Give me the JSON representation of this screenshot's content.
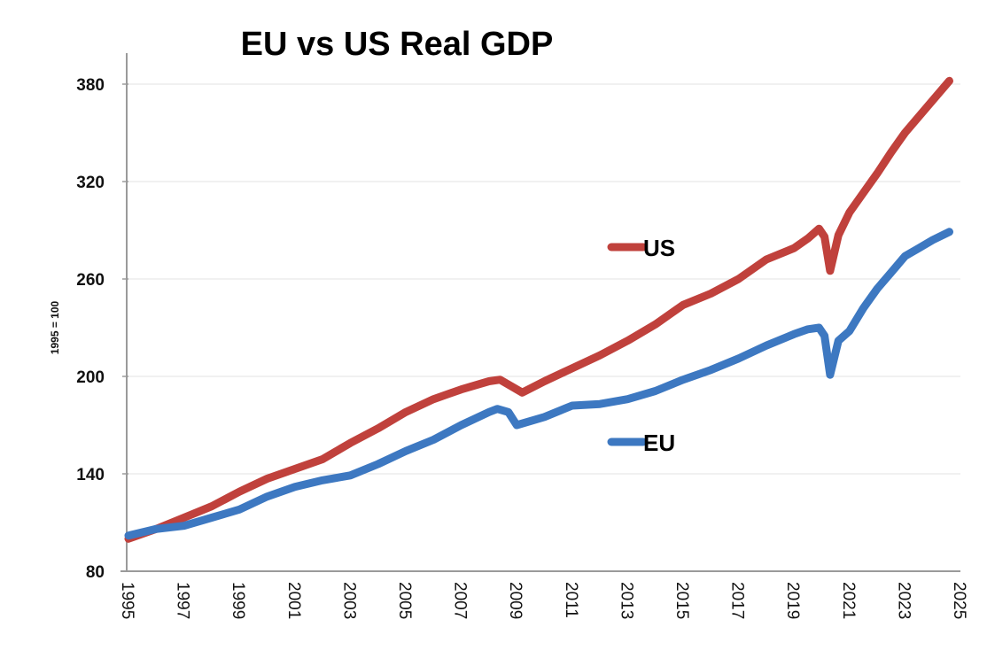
{
  "chart_data": {
    "type": "line",
    "title": "EU vs US Real GDP",
    "xlabel": "",
    "ylabel": "1995 = 100",
    "xlim": [
      1995,
      2025
    ],
    "ylim": [
      80,
      400
    ],
    "yticks": [
      80,
      140,
      200,
      260,
      320,
      380
    ],
    "xticks": [
      1995,
      1997,
      1999,
      2001,
      2003,
      2005,
      2007,
      2009,
      2011,
      2013,
      2015,
      2017,
      2019,
      2021,
      2023,
      2025
    ],
    "grid": true,
    "legend": "inline labels near lines",
    "series": [
      {
        "name": "US",
        "color": "#c0413c",
        "x": [
          1995,
          1996,
          1997,
          1998,
          1999,
          2000,
          2001,
          2002,
          2003,
          2004,
          2005,
          2006,
          2007,
          2008,
          2008.4,
          2008.8,
          2009.2,
          2010,
          2011,
          2012,
          2013,
          2014,
          2015,
          2016,
          2017,
          2018,
          2019,
          2019.5,
          2019.9,
          2020.1,
          2020.3,
          2020.6,
          2021,
          2021.5,
          2022,
          2022.5,
          2023,
          2023.5,
          2024,
          2024.6
        ],
        "y": [
          100,
          106,
          113,
          120,
          129,
          137,
          143,
          149,
          159,
          168,
          178,
          186,
          192,
          197,
          198,
          194,
          190,
          197,
          205,
          213,
          222,
          232,
          244,
          251,
          260,
          272,
          279,
          285,
          291,
          286,
          265,
          287,
          301,
          313,
          325,
          338,
          350,
          360,
          370,
          382
        ]
      },
      {
        "name": "EU",
        "color": "#3d78c1",
        "x": [
          1995,
          1996,
          1997,
          1998,
          1999,
          2000,
          2001,
          2002,
          2003,
          2004,
          2005,
          2006,
          2007,
          2008,
          2008.3,
          2008.7,
          2009,
          2010,
          2011,
          2012,
          2013,
          2014,
          2015,
          2016,
          2017,
          2018,
          2019,
          2019.5,
          2019.9,
          2020.1,
          2020.3,
          2020.6,
          2021,
          2021.5,
          2022,
          2022.5,
          2023,
          2023.5,
          2024,
          2024.6
        ],
        "y": [
          102,
          106,
          108,
          113,
          118,
          126,
          132,
          136,
          139,
          146,
          154,
          161,
          170,
          178,
          180,
          178,
          170,
          175,
          182,
          183,
          186,
          191,
          198,
          204,
          211,
          219,
          226,
          229,
          230,
          225,
          201,
          222,
          228,
          242,
          254,
          264,
          274,
          279,
          284,
          289
        ]
      }
    ],
    "annotations": [
      {
        "text": "US",
        "series": "US"
      },
      {
        "text": "EU",
        "series": "EU"
      }
    ]
  }
}
